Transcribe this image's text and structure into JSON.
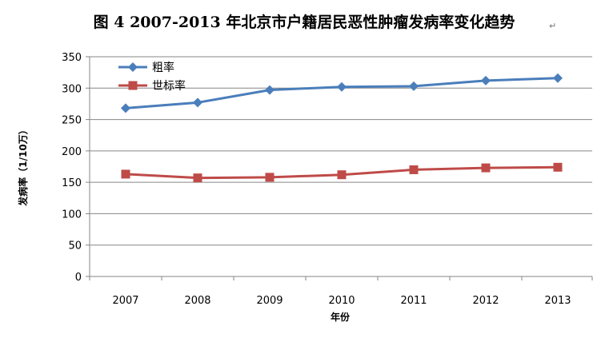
{
  "chart_data": {
    "type": "line",
    "title": "图 4 2007-2013 年北京市户籍居民恶性肿瘤发病率变化趋势",
    "title_mark": "↵",
    "xlabel": "年份",
    "ylabel": "发病率（1/10万）",
    "categories": [
      "2007",
      "2008",
      "2009",
      "2010",
      "2011",
      "2012",
      "2013"
    ],
    "ylim": [
      0,
      350
    ],
    "yticks": [
      0,
      50,
      100,
      150,
      200,
      250,
      300,
      350
    ],
    "grid": true,
    "legend_position": "top-left",
    "series": [
      {
        "name": "粗率",
        "values": [
          268,
          277,
          297,
          302,
          303,
          312,
          316
        ],
        "color": "#4a7ebb",
        "marker": "diamond"
      },
      {
        "name": "世标率",
        "values": [
          163,
          157,
          158,
          162,
          170,
          173,
          174
        ],
        "color": "#be4b48",
        "marker": "square"
      }
    ]
  }
}
